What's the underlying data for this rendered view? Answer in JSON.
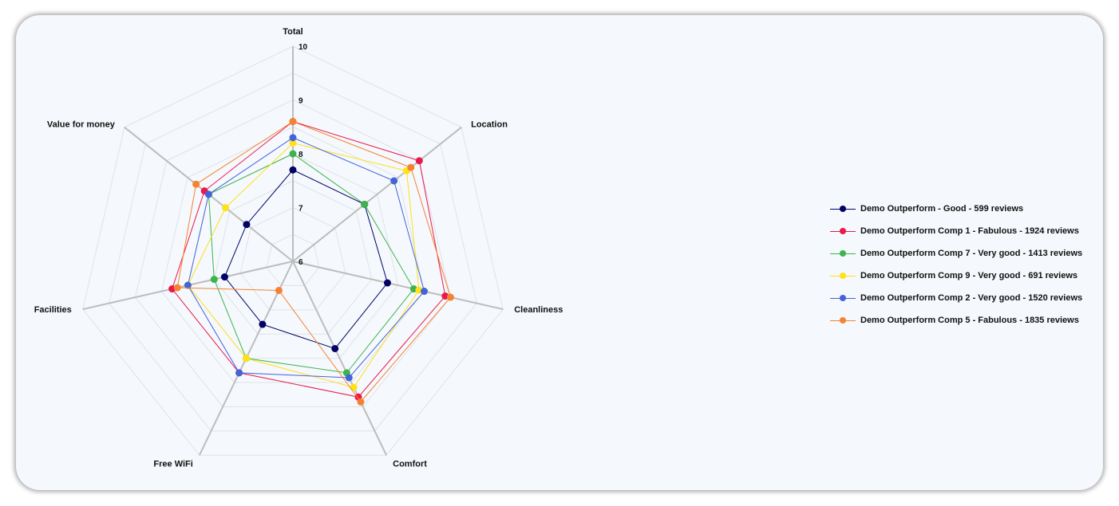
{
  "chart_data": {
    "type": "radar",
    "axes": [
      "Total",
      "Location",
      "Cleanliness",
      "Comfort",
      "Free WiFi",
      "Facilities",
      "Value for money"
    ],
    "scale": {
      "min": 6,
      "max": 10,
      "ticks": [
        "6",
        "7",
        "8",
        "9",
        "10"
      ]
    },
    "series": [
      {
        "name": "Demo Outperform - Good - 599 reviews",
        "color": "#000066",
        "values": [
          7.7,
          7.7,
          7.8,
          7.8,
          7.3,
          7.3,
          7.1
        ]
      },
      {
        "name": "Demo Outperform Comp 1 - Fabulous - 1924 reviews",
        "color": "#e8194b",
        "values": [
          8.6,
          9.0,
          8.9,
          8.8,
          8.3,
          8.3,
          8.1
        ]
      },
      {
        "name": "Demo Outperform Comp 7 - Very good - 1413 reviews",
        "color": "#3cb44b",
        "values": [
          8.0,
          7.7,
          8.3,
          8.3,
          8.0,
          7.5,
          8.0
        ]
      },
      {
        "name": "Demo Outperform Comp 9 - Very good - 691 reviews",
        "color": "#ffe119",
        "values": [
          8.2,
          8.7,
          8.4,
          8.6,
          8.0,
          8.0,
          7.6
        ]
      },
      {
        "name": "Demo Outperform Comp 2 - Very good - 1520 reviews",
        "color": "#4363d8",
        "values": [
          8.3,
          8.4,
          8.5,
          8.4,
          8.3,
          8.0,
          8.0
        ]
      },
      {
        "name": "Demo Outperform Comp 5 - Fabulous - 1835 reviews",
        "color": "#f58231",
        "values": [
          8.6,
          8.8,
          9.0,
          8.9,
          6.6,
          8.2,
          8.3
        ]
      }
    ],
    "legend_position": "right",
    "grid": true
  }
}
